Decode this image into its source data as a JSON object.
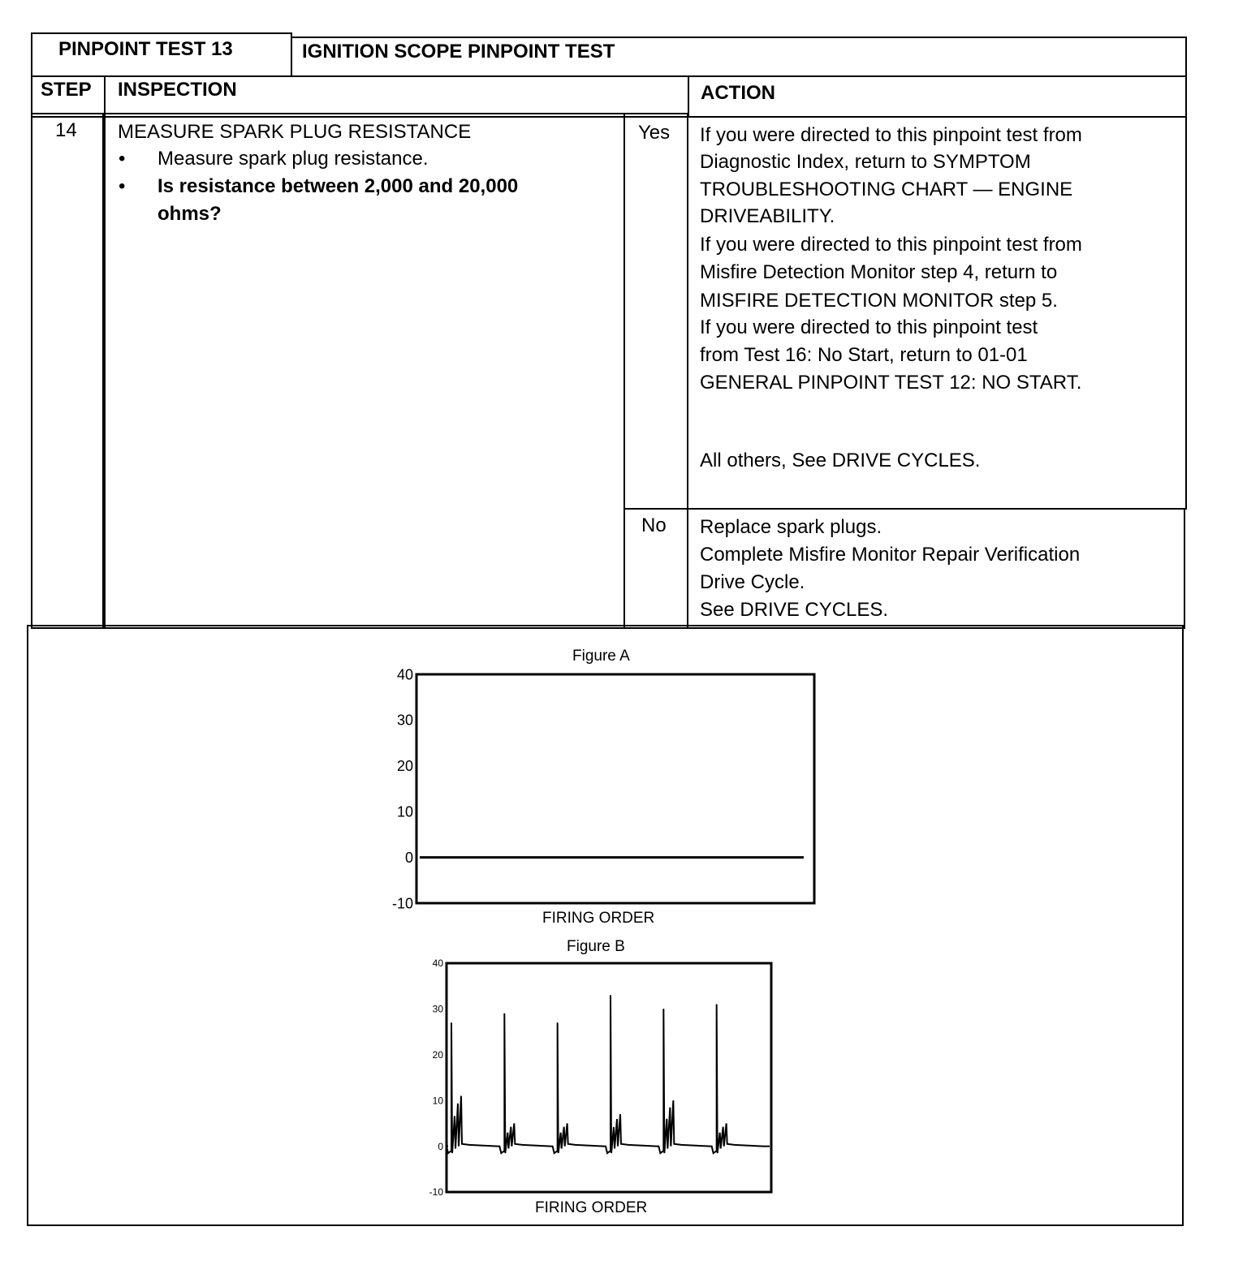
{
  "header": {
    "test_id": "PINPOINT TEST 13",
    "test_title": "IGNITION SCOPE PINPOINT TEST"
  },
  "columns": {
    "step": "STEP",
    "inspection": "INSPECTION",
    "action": "ACTION"
  },
  "row": {
    "step": "14",
    "inspection_title": "MEASURE SPARK PLUG RESISTANCE",
    "bullets": [
      "Measure spark plug resistance.",
      "Is resistance between 2,000 and 20,000",
      "ohms?"
    ],
    "yes_label": "Yes",
    "yes_action": [
      "If you were directed to this pinpoint test from",
      "Diagnostic Index, return to SYMPTOM",
      "TROUBLESHOOTING CHART — ENGINE",
      "DRIVEABILITY.",
      "If you were directed to this pinpoint test from",
      "Misfire Detection Monitor step 4, return to",
      "MISFIRE DETECTION MONITOR step 5.",
      "If you were directed to this pinpoint test",
      "from Test 16:  No Start, return to 01-01",
      "GENERAL PINPOINT TEST 12:  NO START.",
      "All others, See DRIVE CYCLES."
    ],
    "no_label": "No",
    "no_action": [
      "Replace spark plugs.",
      "Complete Misfire Monitor Repair Verification",
      "Drive Cycle.",
      "See DRIVE CYCLES."
    ]
  },
  "chart_data": [
    {
      "type": "line",
      "title": "Figure A",
      "xlabel": "FIRING ORDER",
      "ylabel": "",
      "ylim": [
        -10,
        40
      ],
      "yticks": [
        "40",
        "30",
        "20",
        "10",
        "0",
        "-10"
      ],
      "values": "flat at 0",
      "grid": false
    },
    {
      "type": "line",
      "title": "Figure B",
      "xlabel": "FIRING ORDER",
      "ylabel": "",
      "ylim": [
        -10,
        40
      ],
      "yticks": [
        "40",
        "30",
        "20",
        "10",
        "0",
        "-10"
      ],
      "grid": false,
      "spike_peaks": [
        27,
        29,
        27,
        33,
        30,
        31
      ],
      "secondary_peaks": [
        11,
        5,
        5,
        7,
        10,
        5
      ],
      "baseline": 0
    }
  ]
}
